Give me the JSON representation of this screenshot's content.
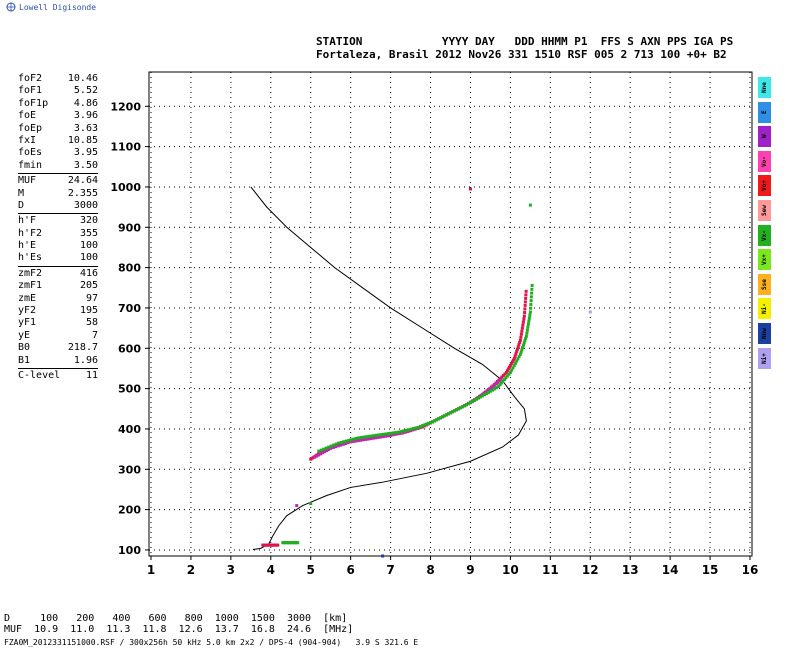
{
  "header": {
    "logo_text": "Lowell Digisonde",
    "line1": "STATION            YYYY DAY   DDD HHMM P1  FFS S AXN PPS IGA PS",
    "line2": "Fortaleza, Brasil 2012 Nov26 331 1510 RSF 005 2 713 100 +0+ B2"
  },
  "parameters": [
    {
      "name": "foF2",
      "value": "10.46"
    },
    {
      "name": "foF1",
      "value": "5.52"
    },
    {
      "name": "foF1p",
      "value": "4.86"
    },
    {
      "name": "foE",
      "value": "3.96"
    },
    {
      "name": "foEp",
      "value": "3.63"
    },
    {
      "name": "fxI",
      "value": "10.85"
    },
    {
      "name": "foEs",
      "value": "3.95"
    },
    {
      "name": "fmin",
      "value": "3.50"
    },
    {
      "sep": true
    },
    {
      "name": "MUF",
      "value": "24.64"
    },
    {
      "name": "M",
      "value": "2.355"
    },
    {
      "name": "D",
      "value": "3000"
    },
    {
      "sep": true
    },
    {
      "name": "h'F",
      "value": "320"
    },
    {
      "name": "h'F2",
      "value": "355"
    },
    {
      "name": "h'E",
      "value": "100"
    },
    {
      "name": "h'Es",
      "value": "100"
    },
    {
      "sep": true
    },
    {
      "name": "zmF2",
      "value": "416"
    },
    {
      "name": "zmF1",
      "value": "205"
    },
    {
      "name": "zmE",
      "value": "97"
    },
    {
      "name": "yF2",
      "value": "195"
    },
    {
      "name": "yF1",
      "value": "58"
    },
    {
      "name": "yE",
      "value": "7"
    },
    {
      "name": "B0",
      "value": "218.7"
    },
    {
      "name": "B1",
      "value": "1.96"
    },
    {
      "sep": true
    },
    {
      "name": "C-level",
      "value": "11"
    }
  ],
  "legend": [
    {
      "label": "Nne",
      "color": "#3ee8e8"
    },
    {
      "label": "E",
      "color": "#2f8fe6"
    },
    {
      "label": "W",
      "color": "#a020c8"
    },
    {
      "label": "Vo-",
      "color": "#ff40b0"
    },
    {
      "label": "Vo+",
      "color": "#f01818"
    },
    {
      "label": "Sew",
      "color": "#ff9a9a"
    },
    {
      "label": "Vx-",
      "color": "#20b020"
    },
    {
      "label": "Vx+",
      "color": "#7ae81c"
    },
    {
      "label": "Sse",
      "color": "#ffb020"
    },
    {
      "label": "Ni-",
      "color": "#f5f000"
    },
    {
      "label": "Nnw",
      "color": "#1a40a0"
    },
    {
      "label": "Ni+",
      "color": "#b0a0f0"
    }
  ],
  "footer": {
    "line1": "D     100   200   400   600   800  1000  1500  3000  [km]",
    "line2": "MUF  10.9  11.0  11.3  11.8  12.6  13.7  16.8  24.6  [MHz]",
    "line3": "FZA0M_2012331151000.RSF / 300x256h 50 kHz 5.0 km 2x2 / DPS-4 (904-904)   3.9 S 321.6 E"
  },
  "chart_data": {
    "type": "scatter",
    "x_ticks": [
      "1",
      "2",
      "3",
      "4",
      "5",
      "6",
      "7",
      "8",
      "9",
      "10",
      "11",
      "12",
      "13",
      "14",
      "15",
      "16"
    ],
    "y_ticks": [
      "100",
      "200",
      "300",
      "400",
      "500",
      "600",
      "700",
      "800",
      "900",
      "1000",
      "1100",
      "1200"
    ],
    "xlim": [
      0.95,
      16.05
    ],
    "ylim": [
      85,
      1285
    ],
    "grid": true,
    "profile": [
      [
        3.5,
        1000
      ],
      [
        3.9,
        950
      ],
      [
        4.4,
        900
      ],
      [
        5.0,
        850
      ],
      [
        5.6,
        800
      ],
      [
        6.3,
        750
      ],
      [
        7.0,
        700
      ],
      [
        7.8,
        650
      ],
      [
        8.6,
        600
      ],
      [
        9.3,
        560
      ],
      [
        9.8,
        520
      ],
      [
        10.1,
        480
      ],
      [
        10.35,
        450
      ],
      [
        10.4,
        420
      ],
      [
        10.2,
        385
      ],
      [
        9.8,
        355
      ],
      [
        9.0,
        320
      ],
      [
        7.9,
        290
      ],
      [
        6.8,
        268
      ],
      [
        6.0,
        255
      ],
      [
        5.4,
        235
      ],
      [
        4.8,
        210
      ],
      [
        4.4,
        185
      ],
      [
        4.2,
        160
      ],
      [
        4.05,
        135
      ],
      [
        3.95,
        115
      ],
      [
        3.75,
        104
      ],
      [
        3.55,
        101
      ]
    ],
    "traces": [
      {
        "color": "#e0144a",
        "points": [
          [
            5.0,
            325
          ],
          [
            5.3,
            345
          ],
          [
            5.8,
            365
          ],
          [
            6.3,
            375
          ],
          [
            6.8,
            382
          ],
          [
            7.3,
            390
          ],
          [
            7.8,
            405
          ],
          [
            8.2,
            425
          ],
          [
            8.6,
            445
          ],
          [
            9.0,
            465
          ],
          [
            9.3,
            485
          ],
          [
            9.6,
            510
          ],
          [
            9.9,
            540
          ],
          [
            10.1,
            575
          ],
          [
            10.25,
            620
          ],
          [
            10.35,
            680
          ],
          [
            10.4,
            750
          ]
        ]
      },
      {
        "color": "#c026b0",
        "points": [
          [
            5.1,
            330
          ],
          [
            5.5,
            352
          ],
          [
            6.0,
            368
          ],
          [
            6.5,
            376
          ],
          [
            7.0,
            384
          ],
          [
            7.5,
            396
          ],
          [
            8.0,
            415
          ],
          [
            8.4,
            435
          ],
          [
            8.8,
            455
          ],
          [
            9.2,
            478
          ],
          [
            9.5,
            500
          ],
          [
            9.8,
            525
          ]
        ]
      },
      {
        "color": "#1fae1f",
        "points": [
          [
            5.2,
            345
          ],
          [
            5.7,
            365
          ],
          [
            6.2,
            378
          ],
          [
            6.7,
            385
          ],
          [
            7.2,
            392
          ],
          [
            7.7,
            404
          ],
          [
            8.1,
            420
          ],
          [
            8.5,
            440
          ],
          [
            8.9,
            460
          ],
          [
            9.3,
            482
          ],
          [
            9.7,
            505
          ],
          [
            10.0,
            540
          ],
          [
            10.25,
            585
          ],
          [
            10.4,
            630
          ],
          [
            10.5,
            690
          ],
          [
            10.55,
            765
          ]
        ]
      },
      {
        "color": "#e0144a",
        "points": [
          [
            3.8,
            112
          ],
          [
            4.0,
            112
          ],
          [
            4.2,
            112
          ]
        ]
      },
      {
        "color": "#1fae1f",
        "points": [
          [
            4.3,
            118
          ],
          [
            4.5,
            118
          ],
          [
            4.7,
            118
          ]
        ]
      }
    ],
    "specks": [
      {
        "x": 9.0,
        "y": 995,
        "color": "#e0144a"
      },
      {
        "x": 10.5,
        "y": 955,
        "color": "#1fae1f"
      },
      {
        "x": 4.65,
        "y": 210,
        "color": "#c026b0"
      },
      {
        "x": 5.0,
        "y": 215,
        "color": "#1fae1f"
      },
      {
        "x": 6.8,
        "y": 85,
        "color": "#1a40a0"
      },
      {
        "x": 12.0,
        "y": 690,
        "color": "#b0a0f0"
      }
    ]
  }
}
